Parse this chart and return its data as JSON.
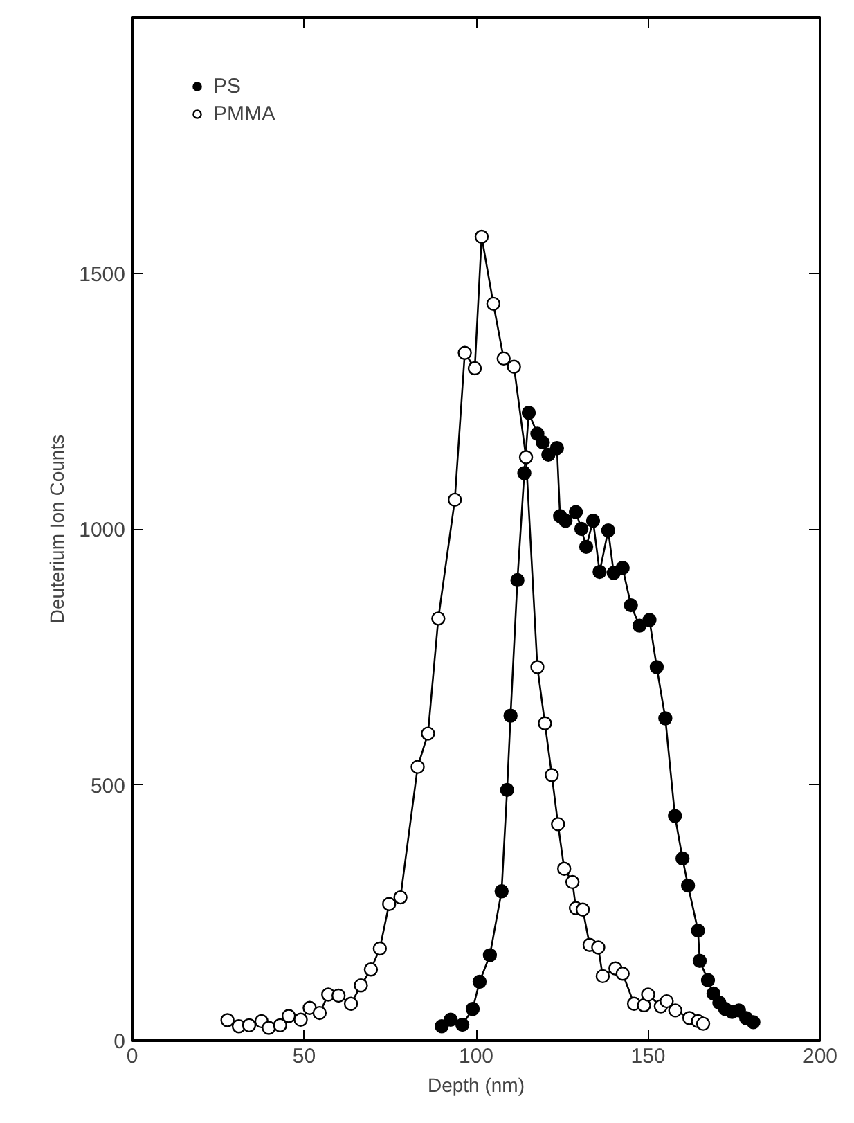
{
  "chart_data": {
    "type": "line",
    "xlabel": "Depth (nm)",
    "ylabel": "Deuterium Ion Counts",
    "xlim": [
      0,
      200
    ],
    "ylim": [
      0,
      2000
    ],
    "xticks": [
      0,
      50,
      100,
      150,
      200
    ],
    "yticks": [
      0,
      500,
      1000,
      1500
    ],
    "grid": false,
    "legend": "top left",
    "marker": "circle",
    "line_style": "solid",
    "series": [
      {
        "name": "PS",
        "color": "#000000",
        "x": [
          90,
          92.6,
          96,
          99,
          101,
          104,
          107.4,
          109,
          110,
          112,
          114,
          115.3,
          117.8,
          119.4,
          121,
          123.5,
          124.4,
          126,
          129,
          130.6,
          132,
          134,
          135.9,
          138.4,
          140,
          142.6,
          145,
          147.5,
          150.4,
          152.5,
          155,
          157.8,
          160,
          161.6,
          164.5,
          165,
          167.4,
          169,
          170.7,
          172.4,
          174.4,
          176.4,
          178.5,
          180.6
        ],
        "values": [
          28,
          41,
          31,
          62,
          115,
          167,
          292,
          490,
          635,
          900,
          1109,
          1227,
          1186,
          1169,
          1145,
          1158,
          1025,
          1016,
          1033,
          1000,
          965,
          1016,
          916,
          997,
          914,
          924,
          851,
          811,
          822,
          730,
          630,
          439,
          356,
          303,
          215,
          156,
          118,
          92,
          74,
          62,
          56,
          59,
          44,
          36
        ]
      },
      {
        "name": "PMMA",
        "color": "#000000",
        "x": [
          27.7,
          31,
          34,
          37.6,
          39.7,
          43,
          45.5,
          49,
          51.6,
          54.5,
          57,
          60,
          63.6,
          66.5,
          69.4,
          72,
          74.7,
          78,
          83,
          86,
          89,
          93.8,
          96.7,
          99.6,
          101.6,
          105,
          108,
          111,
          114.5,
          117.8,
          120,
          122,
          123.8,
          125.6,
          128,
          129,
          131,
          133,
          135.5,
          136.8,
          140.5,
          142.6,
          145.9,
          148.8,
          150,
          153.7,
          155.4,
          157.9,
          162,
          164.5,
          166
        ],
        "values": [
          40,
          28,
          30,
          38,
          25,
          30,
          48,
          41,
          64,
          54,
          90,
          88,
          72,
          108,
          139,
          180,
          267,
          280,
          535,
          600,
          825,
          1057,
          1344,
          1314,
          1571,
          1440,
          1333,
          1317,
          1140,
          730,
          620,
          519,
          423,
          336,
          310,
          259,
          256,
          187,
          182,
          126,
          141,
          131,
          72,
          69,
          90,
          67,
          77,
          59,
          44,
          38,
          33
        ]
      }
    ]
  }
}
